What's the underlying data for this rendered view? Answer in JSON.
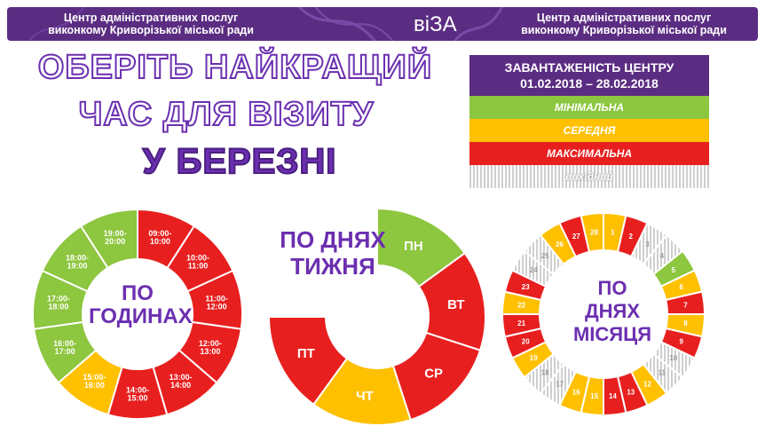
{
  "banner": {
    "left_line1": "Центр адміністративних послуг",
    "left_line2": "виконкому Криворізької міської ради",
    "logo": "віЗА",
    "right_line1": "Центр адміністративних послуг",
    "right_line2": "виконкому Криворізької міської ради"
  },
  "title": {
    "line1": "ОБЕРІТЬ НАЙКРАЩИЙ",
    "line2": "ЧАС ДЛЯ ВІЗИТУ",
    "line3": "У БЕРЕЗНІ"
  },
  "legend": {
    "head_line1": "ЗАВАНТАЖЕНІСТЬ  ЦЕНТРУ",
    "head_line2": "01.02.2018  – 28.02.2018",
    "items": [
      {
        "label": "МІНІМАЛЬНА",
        "color": "#8dc63f"
      },
      {
        "label": "СЕРЕДНЯ",
        "color": "#ffc000"
      },
      {
        "label": "МАКСИМАЛЬНА",
        "color": "#e81f1f"
      },
      {
        "label": "вихідний",
        "color": "#cfcfcf"
      }
    ]
  },
  "colors": {
    "min": "#8dc63f",
    "mid": "#ffc000",
    "max": "#e81f1f",
    "off": "#cfcfcf",
    "accent": "#5b2d82"
  },
  "chart_data": [
    {
      "type": "pie",
      "title": "ПО ГОДИНАХ",
      "title_line1": "ПО",
      "title_line2": "ГОДИНАХ",
      "categories": [
        "09:00-10:00",
        "10:00-11:00",
        "11:00-12:00",
        "12:00-13:00",
        "13:00-14:00",
        "14:00-15:00",
        "15:00-16:00",
        "16:00-17:00",
        "17:00-18:00",
        "18:00-19:00",
        "19:00-20:00"
      ],
      "levels": [
        "max",
        "max",
        "max",
        "max",
        "max",
        "max",
        "mid",
        "min",
        "min",
        "min",
        "min"
      ],
      "values": [
        1,
        1,
        1,
        1,
        1,
        1,
        1,
        1,
        1,
        1,
        1
      ]
    },
    {
      "type": "pie",
      "title": "ПО ДНЯХ ТИЖНЯ",
      "title_line1": "ПО ДНЯХ",
      "title_line2": "ТИЖНЯ",
      "categories": [
        "ПН",
        "ВТ",
        "СР",
        "ЧТ",
        "ПТ"
      ],
      "levels": [
        "min",
        "max",
        "max",
        "mid",
        "max"
      ],
      "values": [
        1,
        1,
        1,
        1,
        1
      ]
    },
    {
      "type": "pie",
      "title": "ПО ДНЯХ МІСЯЦЯ",
      "title_line1": "ПО",
      "title_line2": "ДНЯХ",
      "title_line3": "МІСЯЦЯ",
      "categories": [
        "1",
        "2",
        "3",
        "4",
        "5",
        "6",
        "7",
        "8",
        "9",
        "10",
        "11",
        "12",
        "13",
        "14",
        "15",
        "16",
        "17",
        "18",
        "19",
        "20",
        "21",
        "22",
        "23",
        "24",
        "25",
        "26",
        "27",
        "28"
      ],
      "levels": [
        "mid",
        "max",
        "off",
        "off",
        "min",
        "mid",
        "max",
        "mid",
        "max",
        "off",
        "off",
        "mid",
        "max",
        "max",
        "mid",
        "mid",
        "off",
        "off",
        "mid",
        "max",
        "max",
        "mid",
        "max",
        "off",
        "off",
        "mid",
        "max",
        "mid"
      ],
      "values": [
        1,
        1,
        1,
        1,
        1,
        1,
        1,
        1,
        1,
        1,
        1,
        1,
        1,
        1,
        1,
        1,
        1,
        1,
        1,
        1,
        1,
        1,
        1,
        1,
        1,
        1,
        1,
        1
      ]
    }
  ]
}
